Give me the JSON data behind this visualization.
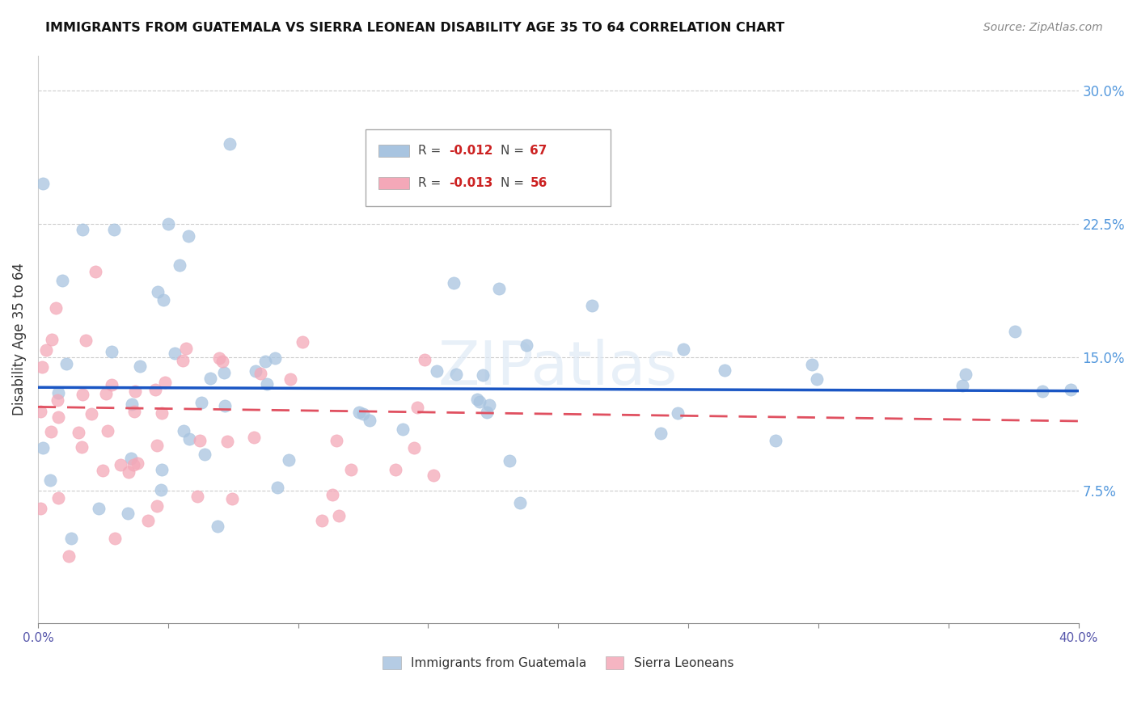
{
  "title": "IMMIGRANTS FROM GUATEMALA VS SIERRA LEONEAN DISABILITY AGE 35 TO 64 CORRELATION CHART",
  "source": "Source: ZipAtlas.com",
  "ylabel": "Disability Age 35 to 64",
  "xlim": [
    0.0,
    0.4
  ],
  "ylim": [
    0.0,
    0.32
  ],
  "xticks": [
    0.0,
    0.05,
    0.1,
    0.15,
    0.2,
    0.25,
    0.3,
    0.35,
    0.4
  ],
  "xtick_labels": [
    "0.0%",
    "",
    "",
    "",
    "",
    "",
    "",
    "",
    "40.0%"
  ],
  "ytick_labels_right": [
    "7.5%",
    "15.0%",
    "22.5%",
    "30.0%"
  ],
  "yticks_right": [
    0.075,
    0.15,
    0.225,
    0.3
  ],
  "legend_blue_r": "-0.012",
  "legend_blue_n": "67",
  "legend_pink_r": "-0.013",
  "legend_pink_n": "56",
  "legend_label_blue": "Immigrants from Guatemala",
  "legend_label_pink": "Sierra Leoneans",
  "blue_color": "#a8c4e0",
  "pink_color": "#f4a8b8",
  "trend_blue_color": "#1a56c4",
  "trend_pink_color": "#e05060",
  "watermark": "ZIPatlas",
  "blue_trend_y0": 0.133,
  "blue_trend_y1": 0.131,
  "pink_trend_y0": 0.122,
  "pink_trend_y1": 0.114
}
